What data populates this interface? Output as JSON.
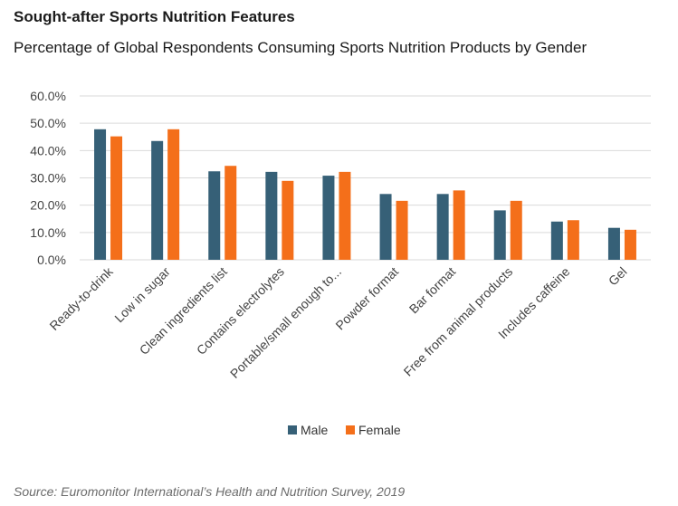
{
  "title": "Sought-after Sports Nutrition Features",
  "subtitle": "Percentage of Global Respondents Consuming Sports Nutrition Products by Gender",
  "source": "Source: Euromonitor International’s Health and Nutrition Survey, 2019",
  "colors": {
    "male": "#366077",
    "female": "#f46f1a",
    "grid": "#d9d9d9"
  },
  "chart_data": {
    "type": "bar",
    "categories": [
      "Ready-to-drink",
      "Low in sugar",
      "Clean ingredients list",
      "Contains electrolytes",
      "Portable/small enough to...",
      "Powder format",
      "Bar format",
      "Free from animal products",
      "Includes caffeine",
      "Gel"
    ],
    "series": [
      {
        "name": "Male",
        "values": [
          47.8,
          43.5,
          32.4,
          32.2,
          30.8,
          24.1,
          24.1,
          18.1,
          14.0,
          11.7
        ]
      },
      {
        "name": "Female",
        "values": [
          45.2,
          47.8,
          34.4,
          28.9,
          32.2,
          21.6,
          25.4,
          21.6,
          14.5,
          11.0
        ]
      }
    ],
    "ylim": [
      0,
      60
    ],
    "yticks": [
      "0.0%",
      "10.0%",
      "20.0%",
      "30.0%",
      "40.0%",
      "50.0%",
      "60.0%"
    ],
    "legend": "bottom",
    "grid": true
  }
}
